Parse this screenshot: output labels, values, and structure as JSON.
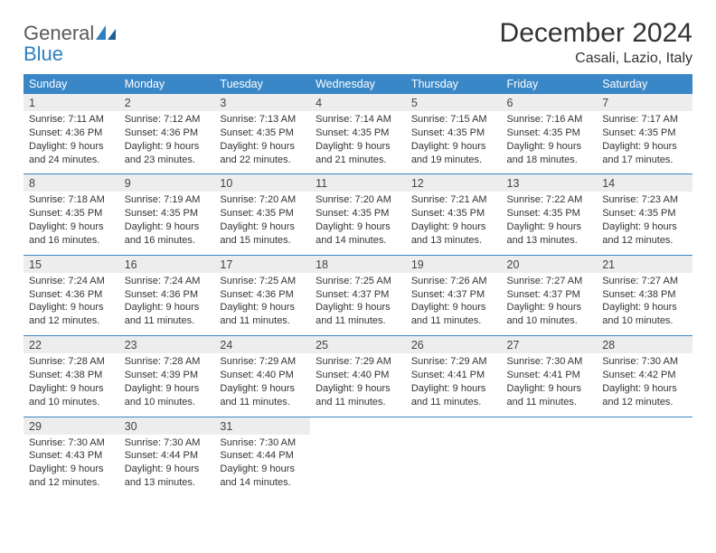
{
  "logo": {
    "general": "General",
    "blue": "Blue"
  },
  "title": "December 2024",
  "location": "Casali, Lazio, Italy",
  "colors": {
    "header_bg": "#3a87c7",
    "header_text": "#ffffff",
    "daynum_bg": "#ededed",
    "sep": "#3a87c7",
    "text": "#333333",
    "logo_gray": "#5a5a5a",
    "logo_blue": "#2e7fbf",
    "page_bg": "#ffffff"
  },
  "typography": {
    "title_fontsize": 30,
    "location_fontsize": 16,
    "dow_fontsize": 12.5,
    "daynum_fontsize": 12.5,
    "body_fontsize": 11
  },
  "dow": [
    "Sunday",
    "Monday",
    "Tuesday",
    "Wednesday",
    "Thursday",
    "Friday",
    "Saturday"
  ],
  "weeks": [
    [
      {
        "n": "1",
        "sr": "Sunrise: 7:11 AM",
        "ss": "Sunset: 4:36 PM",
        "dl": "Daylight: 9 hours and 24 minutes."
      },
      {
        "n": "2",
        "sr": "Sunrise: 7:12 AM",
        "ss": "Sunset: 4:36 PM",
        "dl": "Daylight: 9 hours and 23 minutes."
      },
      {
        "n": "3",
        "sr": "Sunrise: 7:13 AM",
        "ss": "Sunset: 4:35 PM",
        "dl": "Daylight: 9 hours and 22 minutes."
      },
      {
        "n": "4",
        "sr": "Sunrise: 7:14 AM",
        "ss": "Sunset: 4:35 PM",
        "dl": "Daylight: 9 hours and 21 minutes."
      },
      {
        "n": "5",
        "sr": "Sunrise: 7:15 AM",
        "ss": "Sunset: 4:35 PM",
        "dl": "Daylight: 9 hours and 19 minutes."
      },
      {
        "n": "6",
        "sr": "Sunrise: 7:16 AM",
        "ss": "Sunset: 4:35 PM",
        "dl": "Daylight: 9 hours and 18 minutes."
      },
      {
        "n": "7",
        "sr": "Sunrise: 7:17 AM",
        "ss": "Sunset: 4:35 PM",
        "dl": "Daylight: 9 hours and 17 minutes."
      }
    ],
    [
      {
        "n": "8",
        "sr": "Sunrise: 7:18 AM",
        "ss": "Sunset: 4:35 PM",
        "dl": "Daylight: 9 hours and 16 minutes."
      },
      {
        "n": "9",
        "sr": "Sunrise: 7:19 AM",
        "ss": "Sunset: 4:35 PM",
        "dl": "Daylight: 9 hours and 16 minutes."
      },
      {
        "n": "10",
        "sr": "Sunrise: 7:20 AM",
        "ss": "Sunset: 4:35 PM",
        "dl": "Daylight: 9 hours and 15 minutes."
      },
      {
        "n": "11",
        "sr": "Sunrise: 7:20 AM",
        "ss": "Sunset: 4:35 PM",
        "dl": "Daylight: 9 hours and 14 minutes."
      },
      {
        "n": "12",
        "sr": "Sunrise: 7:21 AM",
        "ss": "Sunset: 4:35 PM",
        "dl": "Daylight: 9 hours and 13 minutes."
      },
      {
        "n": "13",
        "sr": "Sunrise: 7:22 AM",
        "ss": "Sunset: 4:35 PM",
        "dl": "Daylight: 9 hours and 13 minutes."
      },
      {
        "n": "14",
        "sr": "Sunrise: 7:23 AM",
        "ss": "Sunset: 4:35 PM",
        "dl": "Daylight: 9 hours and 12 minutes."
      }
    ],
    [
      {
        "n": "15",
        "sr": "Sunrise: 7:24 AM",
        "ss": "Sunset: 4:36 PM",
        "dl": "Daylight: 9 hours and 12 minutes."
      },
      {
        "n": "16",
        "sr": "Sunrise: 7:24 AM",
        "ss": "Sunset: 4:36 PM",
        "dl": "Daylight: 9 hours and 11 minutes."
      },
      {
        "n": "17",
        "sr": "Sunrise: 7:25 AM",
        "ss": "Sunset: 4:36 PM",
        "dl": "Daylight: 9 hours and 11 minutes."
      },
      {
        "n": "18",
        "sr": "Sunrise: 7:25 AM",
        "ss": "Sunset: 4:37 PM",
        "dl": "Daylight: 9 hours and 11 minutes."
      },
      {
        "n": "19",
        "sr": "Sunrise: 7:26 AM",
        "ss": "Sunset: 4:37 PM",
        "dl": "Daylight: 9 hours and 11 minutes."
      },
      {
        "n": "20",
        "sr": "Sunrise: 7:27 AM",
        "ss": "Sunset: 4:37 PM",
        "dl": "Daylight: 9 hours and 10 minutes."
      },
      {
        "n": "21",
        "sr": "Sunrise: 7:27 AM",
        "ss": "Sunset: 4:38 PM",
        "dl": "Daylight: 9 hours and 10 minutes."
      }
    ],
    [
      {
        "n": "22",
        "sr": "Sunrise: 7:28 AM",
        "ss": "Sunset: 4:38 PM",
        "dl": "Daylight: 9 hours and 10 minutes."
      },
      {
        "n": "23",
        "sr": "Sunrise: 7:28 AM",
        "ss": "Sunset: 4:39 PM",
        "dl": "Daylight: 9 hours and 10 minutes."
      },
      {
        "n": "24",
        "sr": "Sunrise: 7:29 AM",
        "ss": "Sunset: 4:40 PM",
        "dl": "Daylight: 9 hours and 11 minutes."
      },
      {
        "n": "25",
        "sr": "Sunrise: 7:29 AM",
        "ss": "Sunset: 4:40 PM",
        "dl": "Daylight: 9 hours and 11 minutes."
      },
      {
        "n": "26",
        "sr": "Sunrise: 7:29 AM",
        "ss": "Sunset: 4:41 PM",
        "dl": "Daylight: 9 hours and 11 minutes."
      },
      {
        "n": "27",
        "sr": "Sunrise: 7:30 AM",
        "ss": "Sunset: 4:41 PM",
        "dl": "Daylight: 9 hours and 11 minutes."
      },
      {
        "n": "28",
        "sr": "Sunrise: 7:30 AM",
        "ss": "Sunset: 4:42 PM",
        "dl": "Daylight: 9 hours and 12 minutes."
      }
    ],
    [
      {
        "n": "29",
        "sr": "Sunrise: 7:30 AM",
        "ss": "Sunset: 4:43 PM",
        "dl": "Daylight: 9 hours and 12 minutes."
      },
      {
        "n": "30",
        "sr": "Sunrise: 7:30 AM",
        "ss": "Sunset: 4:44 PM",
        "dl": "Daylight: 9 hours and 13 minutes."
      },
      {
        "n": "31",
        "sr": "Sunrise: 7:30 AM",
        "ss": "Sunset: 4:44 PM",
        "dl": "Daylight: 9 hours and 14 minutes."
      },
      null,
      null,
      null,
      null
    ]
  ]
}
